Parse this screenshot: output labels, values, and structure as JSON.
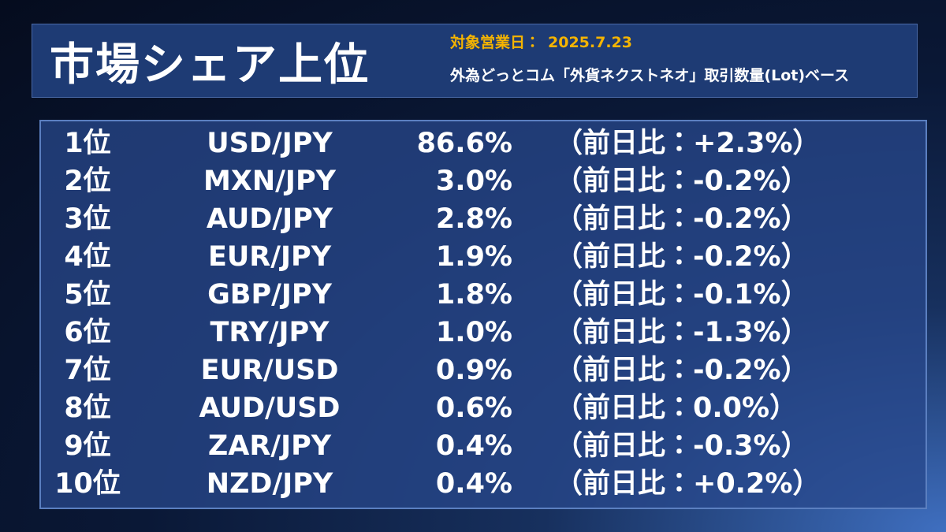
{
  "header": {
    "title": "市場シェア上位",
    "date_label": "対象営業日：",
    "date": "2025.7.23",
    "subtitle": "外為どっとコム「外貨ネクストネオ」取引数量(Lot)ベース"
  },
  "table": {
    "rows": [
      [
        "1位",
        "USD/JPY",
        "86.6%",
        "（前日比：+2.3%）"
      ],
      [
        "2位",
        "MXN/JPY",
        "3.0%",
        "（前日比：-0.2%）"
      ],
      [
        "3位",
        "AUD/JPY",
        "2.8%",
        "（前日比：-0.2%）"
      ],
      [
        "4位",
        "EUR/JPY",
        "1.9%",
        "（前日比：-0.2%）"
      ],
      [
        "5位",
        "GBP/JPY",
        "1.8%",
        "（前日比：-0.1%）"
      ],
      [
        "6位",
        "TRY/JPY",
        "1.0%",
        "（前日比：-1.3%）"
      ],
      [
        "7位",
        "EUR/USD",
        "0.9%",
        "（前日比：-0.2%）"
      ],
      [
        "8位",
        "AUD/USD",
        "0.6%",
        "（前日比：0.0%）"
      ],
      [
        "9位",
        "ZAR/JPY",
        "0.4%",
        "（前日比：-0.3%）"
      ],
      [
        "10位",
        "NZD/JPY",
        "0.4%",
        "（前日比：+0.2%）"
      ]
    ]
  }
}
